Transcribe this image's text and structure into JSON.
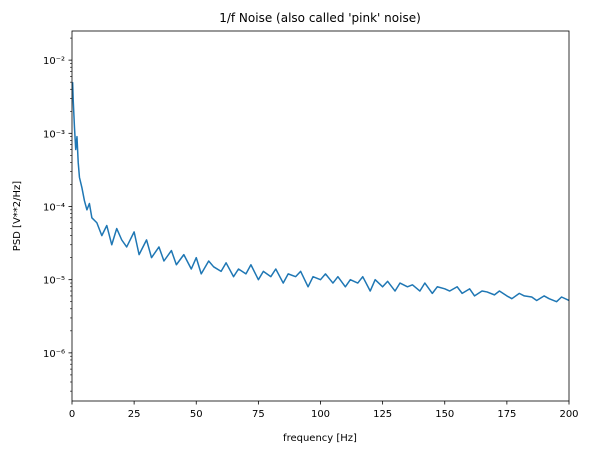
{
  "chart_data": {
    "type": "line",
    "title": "1/f Noise (also called 'pink' noise)",
    "xlabel": "frequency [Hz]",
    "ylabel": "PSD [V**2/Hz]",
    "xlim": [
      0,
      200
    ],
    "ylim": [
      2.2e-07,
      0.025
    ],
    "yscale": "log",
    "grid": false,
    "x_ticks": [
      0,
      25,
      50,
      75,
      100,
      125,
      150,
      175,
      200
    ],
    "y_major_ticks": [
      1e-06,
      1e-05,
      0.0001,
      0.001,
      0.01
    ],
    "y_tick_labels": {
      "1e-6": "10⁻⁶",
      "1e-5": "10⁻⁵",
      "1e-4": "10⁻⁴",
      "1e-3": "10⁻³",
      "1e-2": "10⁻²"
    },
    "series": [
      {
        "color": "#1f77b4",
        "x": [
          0.25,
          0.5,
          1,
          1.5,
          2,
          2.5,
          3,
          4,
          5,
          6,
          7,
          8,
          10,
          12,
          14,
          16,
          18,
          20,
          22,
          25,
          27,
          30,
          32,
          35,
          37,
          40,
          42,
          45,
          48,
          50,
          52,
          55,
          57,
          60,
          62,
          65,
          67,
          70,
          72,
          75,
          77,
          80,
          82,
          85,
          87,
          90,
          92,
          95,
          97,
          100,
          102,
          105,
          107,
          110,
          112,
          115,
          117,
          120,
          122,
          125,
          127,
          130,
          132,
          135,
          137,
          140,
          142,
          145,
          147,
          150,
          152,
          155,
          157,
          160,
          162,
          165,
          167,
          170,
          172,
          175,
          177,
          180,
          182,
          185,
          187,
          190,
          192,
          195,
          197,
          200
        ],
        "y": [
          0.005,
          0.0028,
          0.0012,
          0.0006,
          0.0009,
          0.0004,
          0.00025,
          0.00018,
          0.00012,
          9e-05,
          0.00011,
          7e-05,
          6e-05,
          4e-05,
          5.5e-05,
          3e-05,
          5e-05,
          3.5e-05,
          2.8e-05,
          4.5e-05,
          2.2e-05,
          3.5e-05,
          2e-05,
          2.8e-05,
          1.8e-05,
          2.5e-05,
          1.6e-05,
          2.2e-05,
          1.4e-05,
          2e-05,
          1.2e-05,
          1.8e-05,
          1.5e-05,
          1.3e-05,
          1.7e-05,
          1.1e-05,
          1.4e-05,
          1.2e-05,
          1.6e-05,
          1e-05,
          1.3e-05,
          1.1e-05,
          1.4e-05,
          9e-06,
          1.2e-05,
          1.1e-05,
          1.3e-05,
          8e-06,
          1.1e-05,
          1e-05,
          1.2e-05,
          9e-06,
          1.1e-05,
          8e-06,
          1e-05,
          9e-06,
          1.1e-05,
          7e-06,
          1e-05,
          8e-06,
          9.5e-06,
          7e-06,
          9e-06,
          8e-06,
          8.5e-06,
          7e-06,
          9e-06,
          6.5e-06,
          8e-06,
          7.5e-06,
          7e-06,
          8e-06,
          6.5e-06,
          7.5e-06,
          6e-06,
          7e-06,
          6.8e-06,
          6.2e-06,
          7e-06,
          6e-06,
          5.5e-06,
          6.5e-06,
          6e-06,
          5.8e-06,
          5.2e-06,
          6e-06,
          5.5e-06,
          5e-06,
          5.8e-06,
          5.2e-06
        ]
      }
    ]
  }
}
